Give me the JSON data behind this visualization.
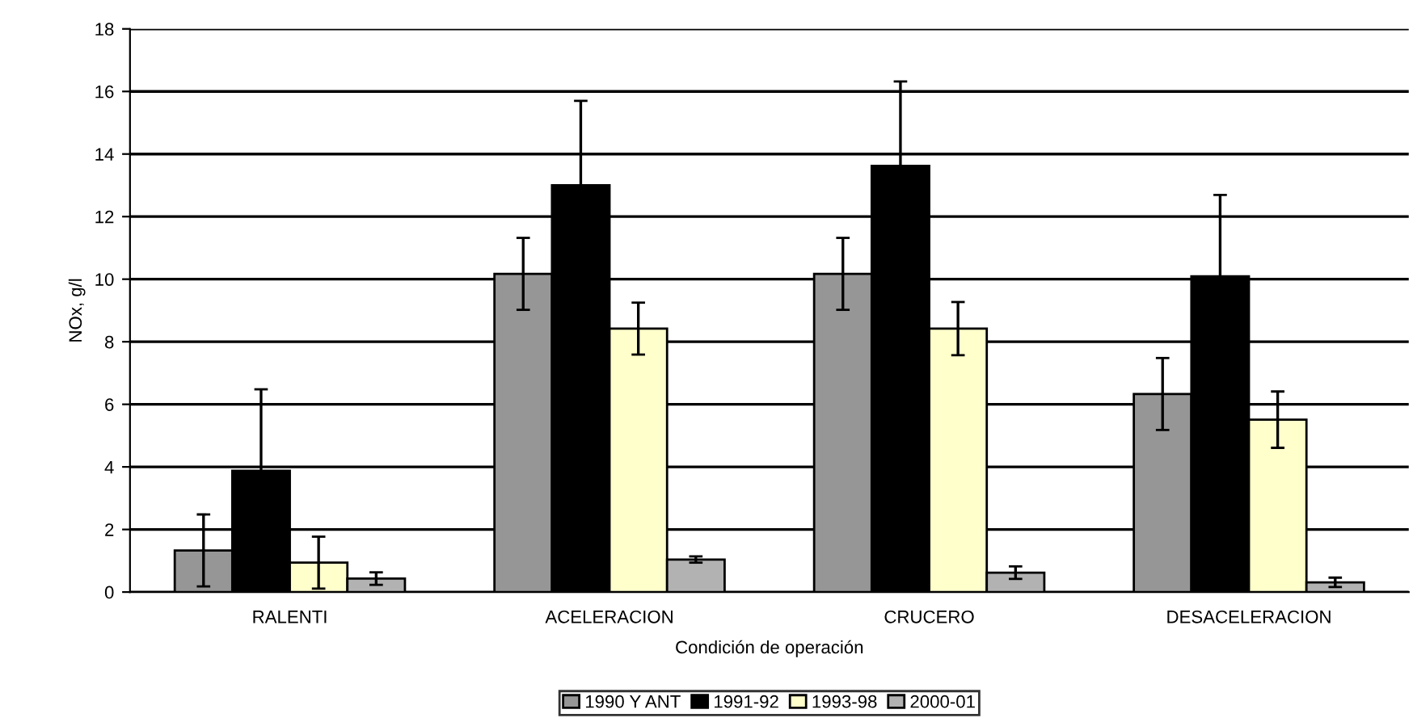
{
  "chart_data": {
    "type": "bar",
    "xlabel": "Condición de operación",
    "ylabel": "NOx, g/l",
    "categories": [
      "RALENTI",
      "ACELERACION",
      "CRUCERO",
      "DESACELERACION"
    ],
    "series": [
      {
        "name": "1990 Y ANT",
        "color": "#969696",
        "values": [
          1.33,
          10.17,
          10.17,
          6.33
        ],
        "errors": [
          1.15,
          1.15,
          1.15,
          1.15
        ]
      },
      {
        "name": "1991-92",
        "color": "#000000",
        "values": [
          3.88,
          13.0,
          13.62,
          10.09
        ],
        "errors": [
          2.6,
          2.7,
          2.7,
          2.6
        ]
      },
      {
        "name": "1993-98",
        "color": "#ffffcc",
        "values": [
          0.94,
          8.42,
          8.42,
          5.51
        ],
        "errors": [
          0.83,
          0.83,
          0.85,
          0.9
        ]
      },
      {
        "name": "2000-01",
        "color": "#b2b2b2",
        "values": [
          0.43,
          1.04,
          0.62,
          0.31
        ],
        "errors": [
          0.2,
          0.1,
          0.2,
          0.15
        ]
      }
    ],
    "ylim": [
      0,
      18
    ],
    "yticks": [
      0,
      2,
      4,
      6,
      8,
      10,
      12,
      14,
      16,
      18
    ],
    "grid": "y",
    "legend": "bottom"
  }
}
